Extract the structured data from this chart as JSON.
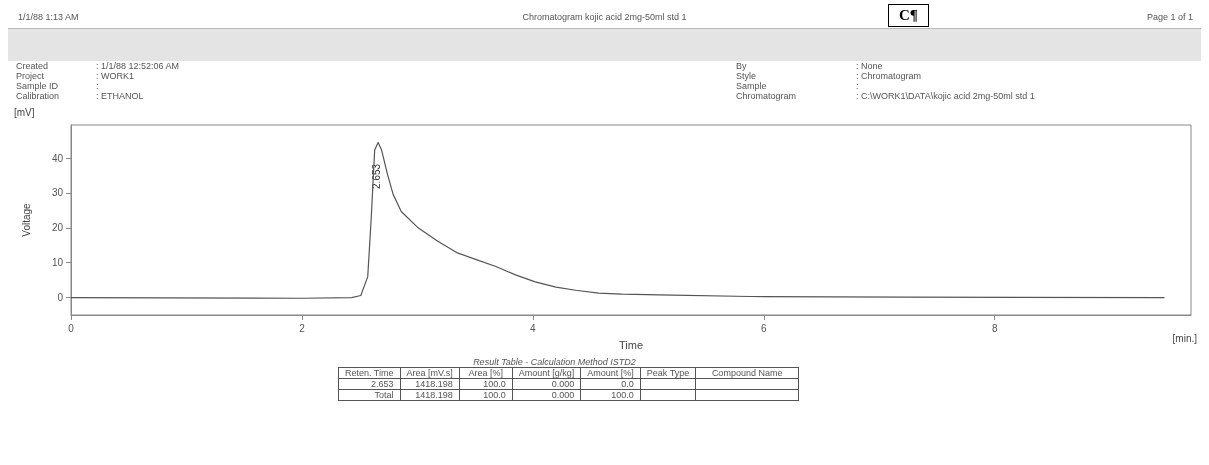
{
  "chart_data": {
    "type": "line",
    "title": "Chromatogram kojic acid 2mg-50ml std 1",
    "xlabel": "Time",
    "ylabel": "Voltage",
    "color": "#555555",
    "line_style": "solid",
    "marker": "none",
    "grid": false,
    "x": [
      0,
      2,
      2.43,
      2.51,
      2.57,
      2.6,
      2.63,
      2.66,
      2.69,
      2.74,
      2.79,
      2.86,
      3.0,
      3.17,
      3.34,
      3.51,
      3.68,
      3.85,
      4.02,
      4.2,
      4.37,
      4.57,
      4.77,
      5.21,
      5.88,
      7.22,
      9.47
    ],
    "values": [
      0,
      -0.2,
      0,
      0.6,
      6,
      22.7,
      42.3,
      44.5,
      42.3,
      35.5,
      29.6,
      24.7,
      20.2,
      16.3,
      12.9,
      10.9,
      8.9,
      6.5,
      4.5,
      3.0,
      2.1,
      1.3,
      1.0,
      0.7,
      0.3,
      0.1,
      0
    ],
    "xlim": [
      0,
      9.7
    ],
    "xticks": [
      0,
      2,
      4,
      6,
      8
    ],
    "ylim": [
      -5,
      49.5
    ],
    "yticks": [
      0,
      10,
      20,
      30,
      40
    ],
    "annotations": [
      "1/1/88 1:13 AM",
      "Page 1 of 1",
      "C¶",
      "Created",
      ": 1/1/88 12:52:06 AM",
      "By",
      ": None",
      "Project",
      ": WORK1",
      "Style",
      ": Chromatogram",
      "Sample ID",
      ":",
      "Sample",
      ":",
      "Calibration",
      ": ETHANOL",
      "Chromatogram",
      ": C:\\WORK1\\DATA\\kojic acid 2mg-50ml std 1",
      "[mV]",
      "[min.]",
      "2.653",
      "Result Table - Calculation Method ISTD2",
      "Reten. Time",
      "Area [mV.s]",
      "Area [%]",
      "Amount [g/kg]",
      "Amount [%]",
      "Peak Type",
      "Compound Name",
      "2.653",
      "1418.198",
      "100.0",
      "0.000",
      "0.0",
      "Total",
      "1418.198",
      "100.0",
      "0.000",
      "100.0"
    ]
  }
}
